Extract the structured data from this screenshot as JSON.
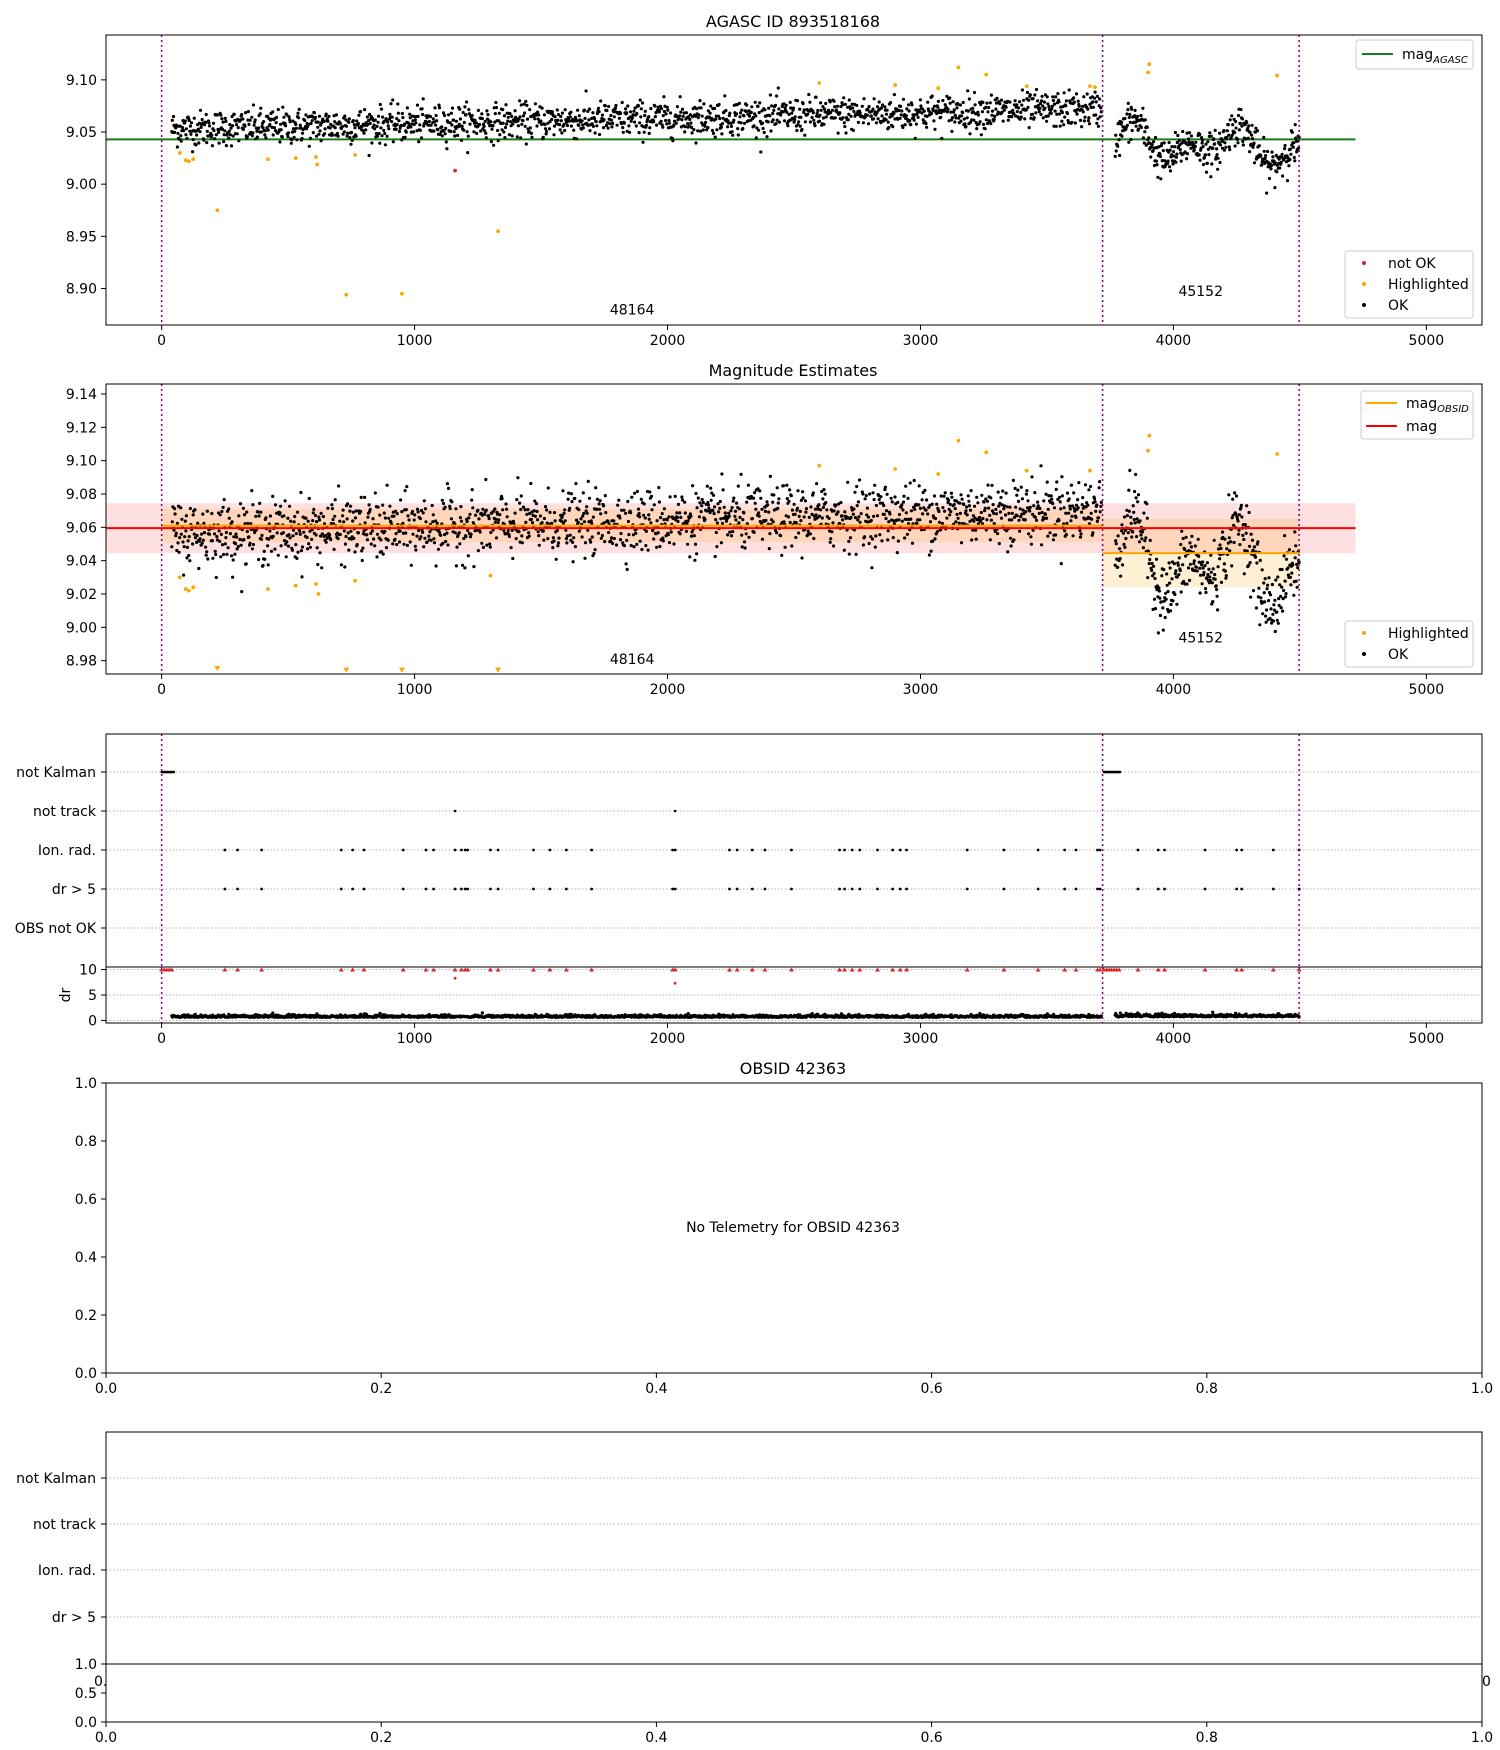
{
  "chart_data": [
    {
      "type": "scatter",
      "title": "AGASC ID 893518168",
      "xlim": [
        -220,
        5220
      ],
      "ylim": [
        8.865,
        9.143
      ],
      "xticks": [
        0,
        1000,
        2000,
        3000,
        4000,
        5000
      ],
      "xtick_labels": [
        "0",
        "1000",
        "2000",
        "3000",
        "4000",
        "5000"
      ],
      "yticks": [
        8.9,
        8.95,
        9.0,
        9.05,
        9.1
      ],
      "ytick_labels": [
        "8.90",
        "8.95",
        "9.00",
        "9.05",
        "9.10"
      ],
      "vlines": [
        0,
        3720,
        4497
      ],
      "obs_labels": [
        {
          "text": "48164",
          "x": 1860,
          "y": 8.875
        },
        {
          "text": "45152",
          "x": 4108,
          "y": 8.893
        }
      ],
      "hlines": [
        {
          "name": "mag_AGASC",
          "y": 9.043,
          "x0": -220,
          "x1": 4720,
          "color": "#1a7a1a"
        }
      ],
      "series": [
        {
          "name": "OK",
          "color": "#000000",
          "segments": [
            {
              "x0": 40,
              "x1": 3715,
              "n": 1650,
              "y0": 9.053,
              "y1": 9.072,
              "noise": 0.0085
            },
            {
              "x0": 3770,
              "x1": 4497,
              "n": 380,
              "y0": 9.041,
              "y1": 9.034,
              "noise": 0.009,
              "wiggle": 0.022
            }
          ]
        },
        {
          "name": "Highlighted",
          "color": "#ffa500",
          "points": [
            [
              72,
              9.03
            ],
            [
              95,
              9.023
            ],
            [
              108,
              9.022
            ],
            [
              125,
              9.024
            ],
            [
              220,
              8.975
            ],
            [
              420,
              9.024
            ],
            [
              530,
              9.025
            ],
            [
              615,
              9.019
            ],
            [
              610,
              9.026
            ],
            [
              730,
              8.894
            ],
            [
              765,
              9.028
            ],
            [
              950,
              8.895
            ],
            [
              1330,
              8.955
            ],
            [
              2600,
              9.097
            ],
            [
              2900,
              9.095
            ],
            [
              3070,
              9.092
            ],
            [
              3150,
              9.112
            ],
            [
              3260,
              9.105
            ],
            [
              3420,
              9.094
            ],
            [
              3670,
              9.094
            ],
            [
              3690,
              9.093
            ],
            [
              3905,
              9.115
            ],
            [
              3900,
              9.107
            ],
            [
              4410,
              9.104
            ]
          ]
        },
        {
          "name": "not OK",
          "color": "#d62728",
          "points": [
            [
              1160,
              9.013
            ]
          ]
        }
      ],
      "legend_top": [
        {
          "label": "mag",
          "sub": "AGASC",
          "color": "#1a7a1a"
        }
      ],
      "legend_bottom": [
        {
          "label": "not OK",
          "color": "#d62728"
        },
        {
          "label": "Highlighted",
          "color": "#ffa500"
        },
        {
          "label": "OK",
          "color": "#000000"
        }
      ]
    },
    {
      "type": "scatter",
      "title": "Magnitude Estimates",
      "xlim": [
        -220,
        5220
      ],
      "ylim": [
        8.972,
        9.146
      ],
      "xticks": [
        0,
        1000,
        2000,
        3000,
        4000,
        5000
      ],
      "xtick_labels": [
        "0",
        "1000",
        "2000",
        "3000",
        "4000",
        "5000"
      ],
      "yticks": [
        8.98,
        9.0,
        9.02,
        9.04,
        9.06,
        9.08,
        9.1,
        9.12,
        9.14
      ],
      "ytick_labels": [
        "8.98",
        "9.00",
        "9.02",
        "9.04",
        "9.06",
        "9.08",
        "9.10",
        "9.12",
        "9.14"
      ],
      "vlines": [
        0,
        3720,
        4497
      ],
      "obs_labels": [
        {
          "text": "48164",
          "x": 1860,
          "y": 8.978
        },
        {
          "text": "45152",
          "x": 4108,
          "y": 8.991
        }
      ],
      "hlines": [
        {
          "name": "mag",
          "y": 9.0595,
          "x0": -220,
          "x1": 4720,
          "color": "#ff0000",
          "band": [
            9.0445,
            9.0745
          ],
          "band_color": "#ff00001f"
        },
        {
          "name": "mag_OBSID 48164",
          "y": 9.061,
          "x0": 0,
          "x1": 3720,
          "color": "#ffa500",
          "band": [
            9.051,
            9.071
          ],
          "band_color": "#ffa5002a"
        },
        {
          "name": "mag_OBSID 45152",
          "y": 9.0445,
          "x0": 3720,
          "x1": 4497,
          "color": "#ffa500",
          "band": [
            9.024,
            9.065
          ],
          "band_color": "#ffa5002a"
        }
      ],
      "series": [
        {
          "name": "OK",
          "color": "#000000",
          "segments": [
            {
              "x0": 40,
              "x1": 3715,
              "n": 1650,
              "y0": 9.056,
              "y1": 9.071,
              "noise": 0.0095
            },
            {
              "x0": 3770,
              "x1": 4497,
              "n": 380,
              "y0": 9.042,
              "y1": 9.035,
              "noise": 0.01,
              "wiggle": 0.028
            }
          ]
        },
        {
          "name": "Highlighted",
          "color": "#ffa500",
          "points": [
            [
              72,
              9.03
            ],
            [
              95,
              9.023
            ],
            [
              108,
              9.022
            ],
            [
              125,
              9.024
            ],
            [
              420,
              9.023
            ],
            [
              530,
              9.025
            ],
            [
              610,
              9.026
            ],
            [
              620,
              9.02
            ],
            [
              765,
              9.028
            ],
            [
              1300,
              9.031
            ],
            [
              2600,
              9.097
            ],
            [
              2900,
              9.095
            ],
            [
              3070,
              9.092
            ],
            [
              3150,
              9.112
            ],
            [
              3260,
              9.105
            ],
            [
              3420,
              9.094
            ],
            [
              3670,
              9.094
            ],
            [
              3905,
              9.115
            ],
            [
              3900,
              9.106
            ],
            [
              4410,
              9.104
            ]
          ]
        },
        {
          "name": "Highlighted (clipped)",
          "color": "#ffa500",
          "marker": "triangle-down",
          "points": [
            [
              220,
              8.975
            ],
            [
              730,
              8.974
            ],
            [
              950,
              8.974
            ],
            [
              1330,
              8.974
            ]
          ]
        }
      ],
      "legend_top": [
        {
          "label": "mag",
          "sub": "OBSID",
          "color": "#ffa500"
        },
        {
          "label": "mag",
          "sub": "",
          "color": "#ff0000"
        }
      ],
      "legend_bottom": [
        {
          "label": "Highlighted",
          "color": "#ffa500"
        },
        {
          "label": "OK",
          "color": "#000000"
        }
      ]
    },
    {
      "type": "flags",
      "xlim": [
        -220,
        5220
      ],
      "categories": [
        "not Kalman",
        "not track",
        "Ion. rad.",
        "dr > 5",
        "OBS not OK"
      ],
      "vlines": [
        0,
        3720,
        4497
      ],
      "not_kalman_ranges": [
        [
          0,
          50
        ],
        [
          3725,
          3790
        ]
      ],
      "not_track": [
        1160,
        2030
      ],
      "ion_rad": [
        250,
        300,
        395,
        710,
        755,
        800,
        955,
        1045,
        1075,
        1160,
        1185,
        1200,
        1210,
        1300,
        1330,
        1470,
        1535,
        1600,
        1700,
        2020,
        2030,
        2245,
        2275,
        2335,
        2385,
        2490,
        2680,
        2700,
        2730,
        2760,
        2830,
        2890,
        2920,
        2945,
        3185,
        3330,
        3465,
        3570,
        3615,
        3700,
        3710,
        3860,
        3940,
        3965,
        4125,
        4250,
        4270,
        4395,
        4497
      ]
    },
    {
      "type": "scatter",
      "ylabel": "dr",
      "xlim": [
        -220,
        5220
      ],
      "ylim": [
        -0.5,
        10.5
      ],
      "yticks": [
        0,
        5,
        10
      ],
      "ytick_labels": [
        "0",
        "5",
        "10"
      ],
      "xticks": [
        0,
        1000,
        2000,
        3000,
        4000,
        5000
      ],
      "xtick_labels": [
        "0",
        "1000",
        "2000",
        "3000",
        "4000",
        "5000"
      ],
      "vlines": [
        0,
        3720,
        4497
      ],
      "series": [
        {
          "name": "dr",
          "color": "#000000",
          "segments": [
            {
              "x0": 40,
              "x1": 3715,
              "n": 1500,
              "mean": 0.6,
              "noise": 0.35
            },
            {
              "x0": 3770,
              "x1": 4497,
              "n": 320,
              "mean": 0.7,
              "noise": 0.4
            }
          ]
        },
        {
          "name": "dr clipped",
          "color": "#d62728",
          "marker": "triangle-up",
          "y": 10
        },
        {
          "name": "dr outliers",
          "color": "#d62728",
          "points": [
            [
              1160,
              8.3
            ],
            [
              2030,
              7.3
            ]
          ]
        }
      ]
    },
    {
      "type": "empty",
      "title": "OBSID 42363",
      "message": "No Telemetry for OBSID 42363",
      "xticks": [
        0.0,
        0.2,
        0.4,
        0.6,
        0.8,
        1.0
      ],
      "xtick_labels": [
        "0.0",
        "0.2",
        "0.4",
        "0.6",
        "0.8",
        "1.0"
      ],
      "yticks": [
        0.0,
        0.2,
        0.4,
        0.6,
        0.8,
        1.0
      ],
      "ytick_labels": [
        "0.0",
        "0.2",
        "0.4",
        "0.6",
        "0.8",
        "1.0"
      ]
    },
    {
      "type": "flags",
      "categories": [
        "not Kalman",
        "not track",
        "Ion. rad.",
        "dr > 5"
      ],
      "partial_tick_labels": [
        "0.",
        "0"
      ]
    },
    {
      "type": "empty",
      "yticks": [
        0.0,
        0.5,
        1.0
      ],
      "ytick_labels": [
        "0.0",
        "0.5",
        "1.0"
      ],
      "xticks": [
        0.0,
        0.2,
        0.4,
        0.6,
        0.8,
        1.0
      ],
      "xtick_labels": [
        "0.0",
        "0.2",
        "0.4",
        "0.6",
        "0.8",
        "1.0"
      ]
    }
  ]
}
